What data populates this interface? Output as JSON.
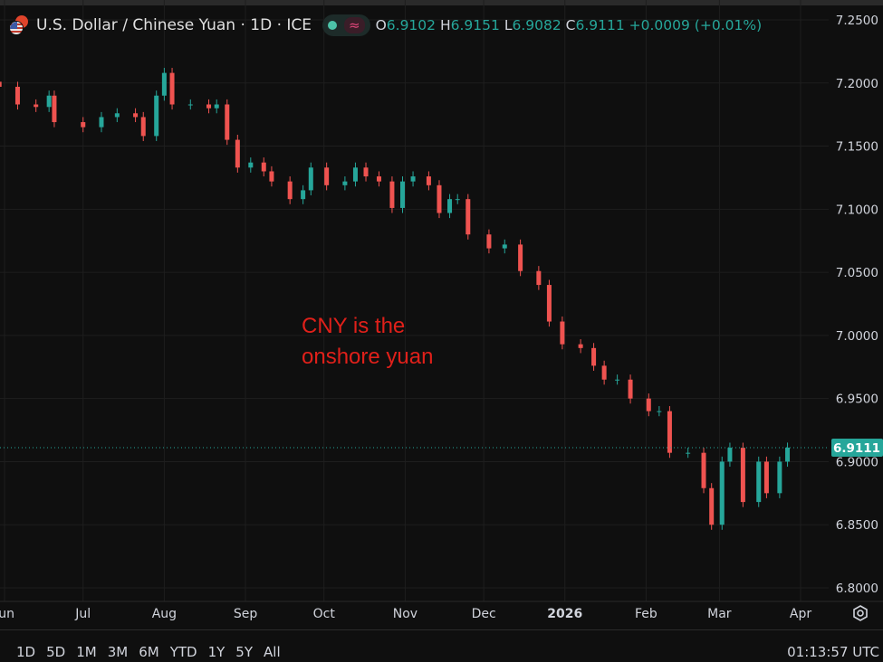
{
  "header": {
    "title": "U.S. Dollar / Chinese Yuan · 1D · ICE",
    "icons": {
      "flag": "us-cn-flag-icon",
      "market_status": "green-dot-icon",
      "indicator": "approx-wave-icon"
    },
    "open_label": "O",
    "open": "6.9102",
    "high_label": "H",
    "high": "6.9151",
    "low_label": "L",
    "low": "6.9082",
    "close_label": "C",
    "close": "6.9111",
    "change": "+0.0009 (+0.01%)"
  },
  "annotation": {
    "line1": "CNY is the",
    "line2": "onshore yuan",
    "color": "#e0201a"
  },
  "footer": {
    "ranges": [
      "1D",
      "5D",
      "1M",
      "3M",
      "6M",
      "YTD",
      "1Y",
      "5Y",
      "All"
    ],
    "clock": "01:13:57 UTC",
    "settings_icon": "settings-gear-icon"
  },
  "colors": {
    "up": "#26a69a",
    "down": "#ef5350",
    "background": "#0f0f0f",
    "grid": "#1e1e1e"
  },
  "chart_data": {
    "type": "candlestick",
    "title": "U.S. Dollar / Chinese Yuan · 1D · ICE",
    "ylim": [
      6.8,
      7.25
    ],
    "xlim": [
      "2025-05-30",
      "2026-04-08"
    ],
    "grid": true,
    "y_ticks": [
      "7.2500",
      "7.2000",
      "7.1500",
      "7.1000",
      "7.0500",
      "7.0000",
      "6.9500",
      "6.9000",
      "6.8500",
      "6.8000"
    ],
    "x_ticks": [
      {
        "label": "Jun",
        "date": "2025-06-01"
      },
      {
        "label": "Jul",
        "date": "2025-07-01"
      },
      {
        "label": "Aug",
        "date": "2025-08-01"
      },
      {
        "label": "Sep",
        "date": "2025-09-01"
      },
      {
        "label": "Oct",
        "date": "2025-10-01"
      },
      {
        "label": "Nov",
        "date": "2025-11-01"
      },
      {
        "label": "Dec",
        "date": "2025-12-01"
      },
      {
        "label": "2026",
        "date": "2026-01-01"
      },
      {
        "label": "Feb",
        "date": "2026-02-01"
      },
      {
        "label": "Mar",
        "date": "2026-03-01"
      },
      {
        "label": "Apr",
        "date": "2026-04-01"
      }
    ],
    "last_price": 6.9111,
    "last_price_label": "6.9111",
    "closes": [
      [
        "2025-05-30",
        7.197
      ],
      [
        "2025-06-06",
        7.183
      ],
      [
        "2025-06-13",
        7.181
      ],
      [
        "2025-06-18",
        7.19
      ],
      [
        "2025-06-20",
        7.169
      ],
      [
        "2025-07-01",
        7.165
      ],
      [
        "2025-07-08",
        7.173
      ],
      [
        "2025-07-14",
        7.176
      ],
      [
        "2025-07-21",
        7.173
      ],
      [
        "2025-07-24",
        7.158
      ],
      [
        "2025-07-29",
        7.19
      ],
      [
        "2025-08-01",
        7.208
      ],
      [
        "2025-08-04",
        7.183
      ],
      [
        "2025-08-11",
        7.183
      ],
      [
        "2025-08-18",
        7.18
      ],
      [
        "2025-08-21",
        7.183
      ],
      [
        "2025-08-25",
        7.155
      ],
      [
        "2025-08-29",
        7.133
      ],
      [
        "2025-09-03",
        7.137
      ],
      [
        "2025-09-08",
        7.13
      ],
      [
        "2025-09-11",
        7.122
      ],
      [
        "2025-09-18",
        7.108
      ],
      [
        "2025-09-23",
        7.115
      ],
      [
        "2025-09-26",
        7.133
      ],
      [
        "2025-10-02",
        7.119
      ],
      [
        "2025-10-09",
        7.122
      ],
      [
        "2025-10-13",
        7.133
      ],
      [
        "2025-10-17",
        7.126
      ],
      [
        "2025-10-22",
        7.122
      ],
      [
        "2025-10-27",
        7.101
      ],
      [
        "2025-10-31",
        7.122
      ],
      [
        "2025-11-04",
        7.126
      ],
      [
        "2025-11-10",
        7.119
      ],
      [
        "2025-11-14",
        7.097
      ],
      [
        "2025-11-18",
        7.108
      ],
      [
        "2025-11-21",
        7.108
      ],
      [
        "2025-11-25",
        7.08
      ],
      [
        "2025-12-03",
        7.069
      ],
      [
        "2025-12-09",
        7.072
      ],
      [
        "2025-12-15",
        7.051
      ],
      [
        "2025-12-22",
        7.04
      ],
      [
        "2025-12-26",
        7.011
      ],
      [
        "2025-12-31",
        6.993
      ],
      [
        "2026-01-07",
        6.99
      ],
      [
        "2026-01-12",
        6.976
      ],
      [
        "2026-01-16",
        6.965
      ],
      [
        "2026-01-21",
        6.965
      ],
      [
        "2026-01-26",
        6.95
      ],
      [
        "2026-02-02",
        6.94
      ],
      [
        "2026-02-06",
        6.94
      ],
      [
        "2026-02-10",
        6.907
      ],
      [
        "2026-02-17",
        6.907
      ],
      [
        "2026-02-23",
        6.879
      ],
      [
        "2026-02-26",
        6.85
      ],
      [
        "2026-03-02",
        6.9
      ],
      [
        "2026-03-05",
        6.911
      ],
      [
        "2026-03-10",
        6.868
      ],
      [
        "2026-03-16",
        6.9
      ],
      [
        "2026-03-19",
        6.875
      ],
      [
        "2026-03-24",
        6.9
      ],
      [
        "2026-03-27",
        6.9111
      ]
    ]
  }
}
